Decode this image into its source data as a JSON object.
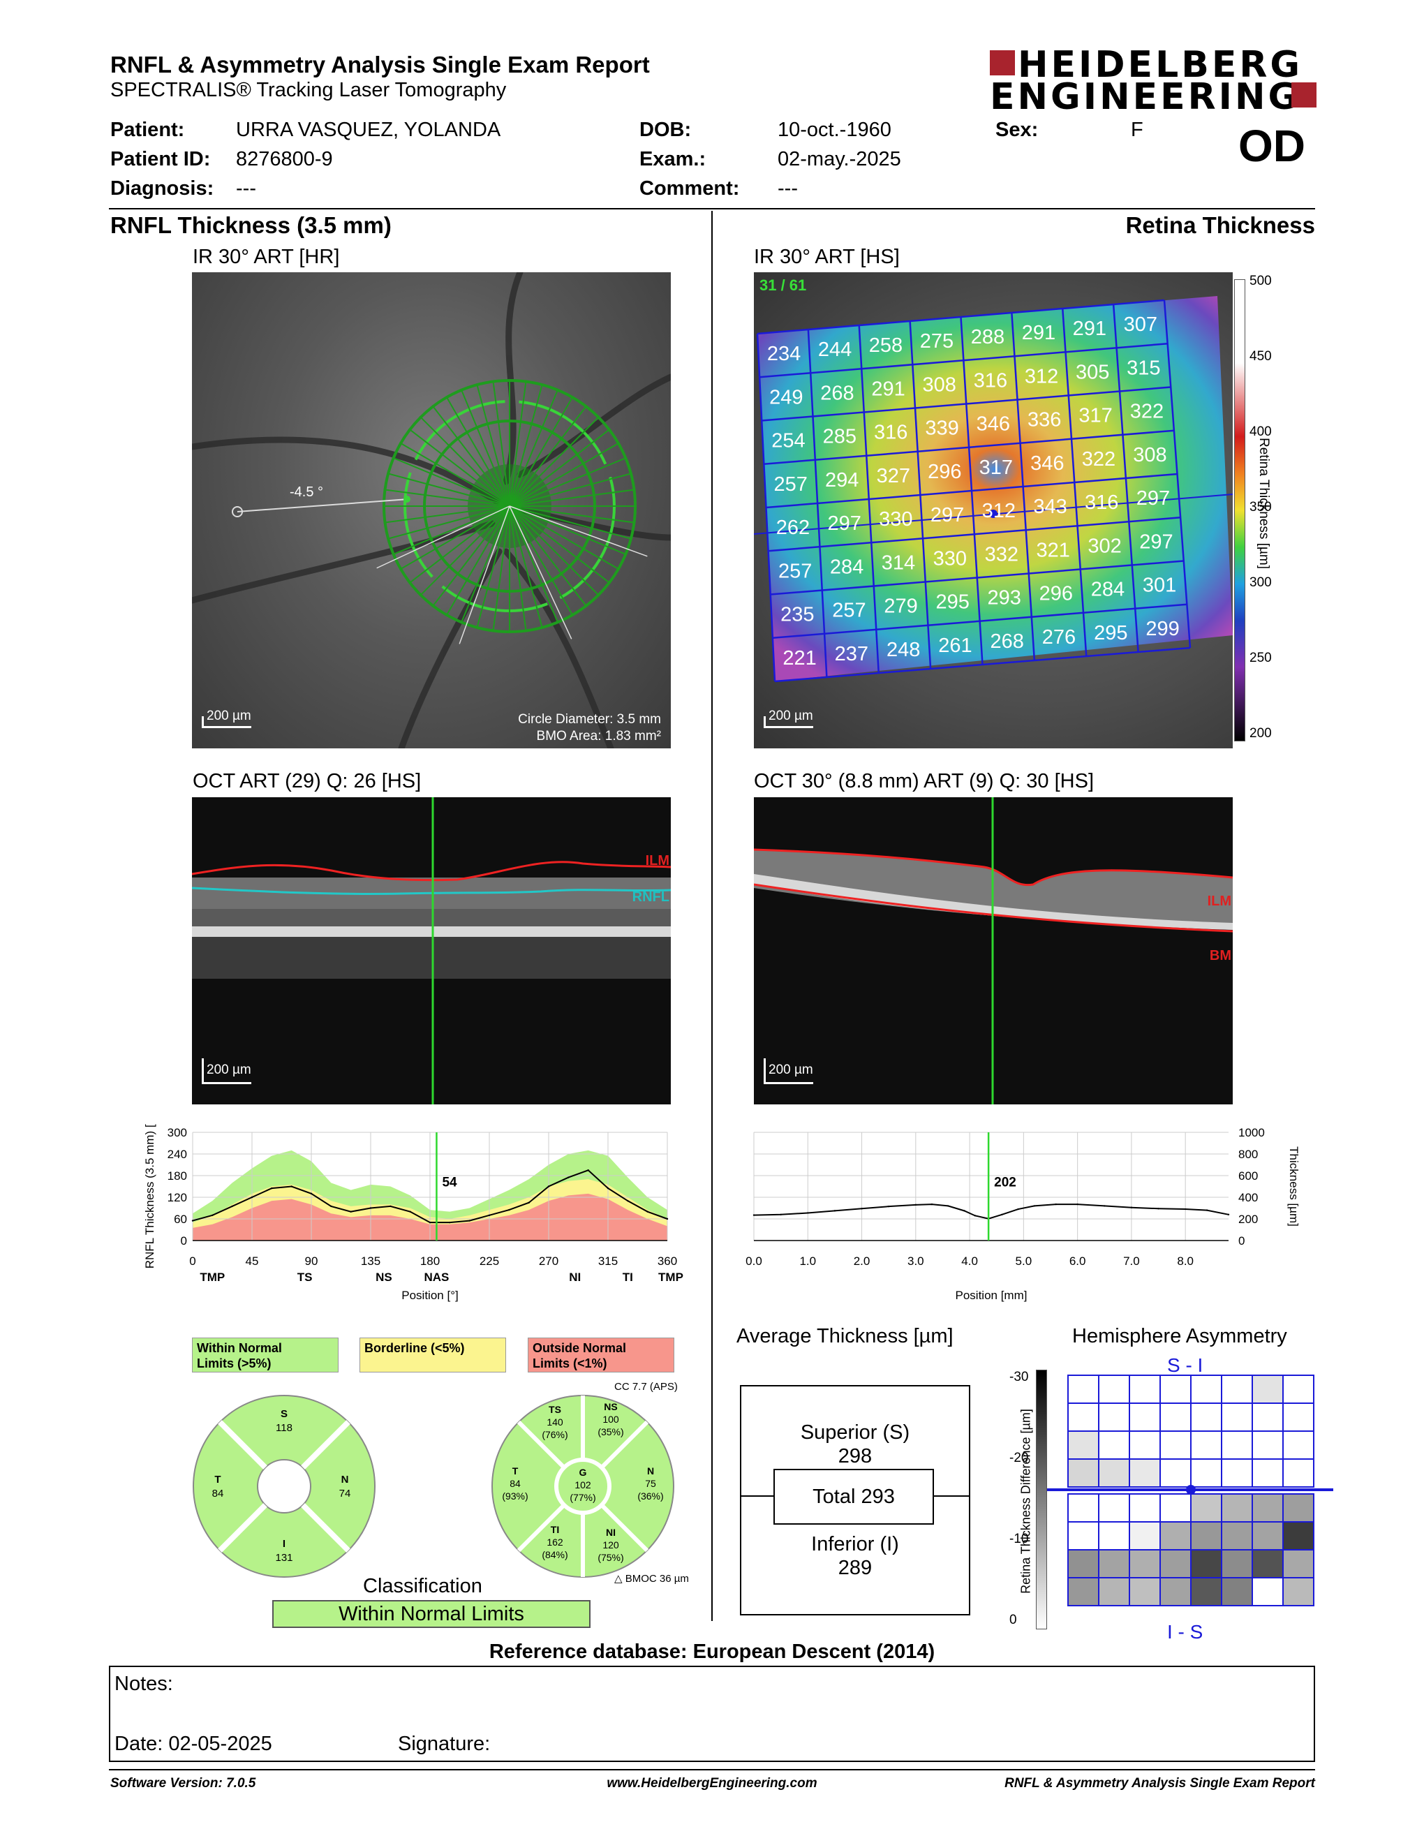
{
  "header": {
    "title": "RNFL & Asymmetry Analysis Single Exam Report",
    "subtitle": "SPECTRALIS® Tracking Laser Tomography",
    "logo_line1": "HEIDELBERG",
    "logo_line2": "ENGINEERING",
    "eye": "OD"
  },
  "patient": {
    "patient_label": "Patient:",
    "patient_value": "URRA VASQUEZ, YOLANDA",
    "id_label": "Patient ID:",
    "id_value": "8276800-9",
    "diag_label": "Diagnosis:",
    "diag_value": "---",
    "dob_label": "DOB:",
    "dob_value": "10-oct.-1960",
    "exam_label": "Exam.:",
    "exam_value": "02-may.-2025",
    "comment_label": "Comment:",
    "comment_value": "---",
    "sex_label": "Sex:",
    "sex_value": "F"
  },
  "left": {
    "section_title": "RNFL Thickness (3.5 mm)",
    "ir_caption": "IR 30° ART [HR]",
    "angle_label": "-4.5 °",
    "scale_label": "200 µm",
    "circle_diam": "Circle Diameter: 3.5 mm",
    "bmo_area": "BMO Area: 1.83 mm²",
    "oct_caption": "OCT ART (29) Q: 26 [HS]",
    "ilm_label": "ILM",
    "rnfl_label": "RNFL",
    "oct_scale": "200 µm",
    "classification_title": "Classification",
    "classification_value": "Within Normal Limits"
  },
  "right": {
    "section_title": "Retina Thickness",
    "ir_caption": "IR 30° ART [HS]",
    "frames": "31 / 61",
    "scale_label": "200 µm",
    "colorbar_title": "Retina Thickness [µm]",
    "colorbar_ticks": [
      "500",
      "450",
      "400",
      "350",
      "300",
      "250",
      "200"
    ],
    "oct_caption": "OCT 30° (8.8 mm) ART (9) Q: 30 [HS]",
    "ilm_label": "ILM",
    "bm_label": "BM",
    "oct_scale": "200 µm"
  },
  "grid_values": [
    [
      234,
      244,
      258,
      275,
      288,
      291,
      291,
      307
    ],
    [
      249,
      268,
      291,
      308,
      316,
      312,
      305,
      315
    ],
    [
      254,
      285,
      316,
      339,
      346,
      336,
      317,
      322
    ],
    [
      257,
      294,
      327,
      296,
      317,
      346,
      322,
      308
    ],
    [
      262,
      297,
      330,
      297,
      312,
      343,
      316,
      297
    ],
    [
      257,
      284,
      314,
      330,
      332,
      321,
      302,
      297
    ],
    [
      235,
      257,
      279,
      295,
      293,
      296,
      284,
      301
    ],
    [
      221,
      237,
      248,
      261,
      268,
      276,
      295,
      299
    ]
  ],
  "legend": {
    "normal": "Within Normal Limits (>5%)",
    "normal_l1": "Within Normal",
    "normal_l2": "Limits (>5%)",
    "borderline": "Borderline (<5%)",
    "outside_l1": "Outside Normal",
    "outside_l2": "Limits (<1%)",
    "cc": "CC 7.7 (APS)",
    "bmoc": "BMOC 36 µm",
    "color_normal": "#b6f28a",
    "color_borderline": "#fbf48f",
    "color_outside": "#f7968c"
  },
  "quad_pie": {
    "S": {
      "label": "S",
      "value": "118"
    },
    "T": {
      "label": "T",
      "value": "84"
    },
    "N": {
      "label": "N",
      "value": "74"
    },
    "I": {
      "label": "I",
      "value": "131"
    }
  },
  "sector_pie": {
    "TS": {
      "label": "TS",
      "value": "140",
      "pct": "(76%)"
    },
    "NS": {
      "label": "NS",
      "value": "100",
      "pct": "(35%)"
    },
    "T": {
      "label": "T",
      "value": "84",
      "pct": "(93%)"
    },
    "G": {
      "label": "G",
      "value": "102",
      "pct": "(77%)"
    },
    "N": {
      "label": "N",
      "value": "75",
      "pct": "(36%)"
    },
    "TI": {
      "label": "TI",
      "value": "162",
      "pct": "(84%)"
    },
    "NI": {
      "label": "NI",
      "value": "120",
      "pct": "(75%)"
    }
  },
  "average": {
    "title": "Average Thickness [µm]",
    "sup_label": "Superior (S)",
    "sup_value": "298",
    "total": "Total 293",
    "inf_label": "Inferior (I)",
    "inf_value": "289"
  },
  "asym": {
    "title": "Hemisphere Asymmetry",
    "top_label": "S - I",
    "bottom_label": "I - S",
    "axis_title": "Retina Thickness Difference [µm]",
    "ticks": [
      "-30",
      "-20",
      "-10",
      "0"
    ],
    "grey_cells": [
      [
        0,
        0,
        0,
        0,
        0,
        0,
        0.12,
        0
      ],
      [
        0,
        0,
        0,
        0,
        0,
        0,
        0,
        0
      ],
      [
        0.12,
        0,
        0,
        0,
        0,
        0,
        0,
        0
      ],
      [
        0.18,
        0.15,
        0.1,
        0,
        0,
        0,
        0,
        0
      ],
      [
        0,
        0,
        0,
        0,
        0.25,
        0.32,
        0.38,
        0.42
      ],
      [
        0,
        0,
        0.06,
        0.35,
        0.45,
        0.42,
        0.4,
        0.85
      ],
      [
        0.48,
        0.4,
        0.35,
        0.42,
        0.8,
        0.5,
        0.75,
        0.38
      ],
      [
        0.45,
        0.32,
        0.28,
        0.4,
        0.72,
        0.55,
        0,
        0.3
      ]
    ]
  },
  "chart_data": [
    {
      "type": "line",
      "title": "",
      "ylabel": "RNFL Thickness (3.5 mm) [µm]",
      "xlabel": "Position [°]",
      "xlim": [
        0,
        360
      ],
      "ylim": [
        0,
        300
      ],
      "xticks": [
        "0",
        "45",
        "90",
        "135",
        "180",
        "225",
        "270",
        "315",
        "360"
      ],
      "yticks": [
        "0",
        "60",
        "120",
        "180",
        "240",
        "300"
      ],
      "sector_labels": [
        "TMP",
        "TS",
        "NS",
        "NAS",
        "NI",
        "TI",
        "TMP"
      ],
      "cursor_x": 185,
      "cursor_label": "54",
      "x": [
        0,
        15,
        30,
        45,
        60,
        75,
        90,
        105,
        120,
        135,
        150,
        165,
        180,
        195,
        210,
        225,
        240,
        255,
        270,
        285,
        300,
        315,
        330,
        345,
        360
      ],
      "series": [
        {
          "values": [
            55,
            70,
            95,
            120,
            145,
            150,
            130,
            95,
            80,
            90,
            95,
            80,
            50,
            50,
            55,
            70,
            85,
            105,
            150,
            175,
            195,
            145,
            110,
            80,
            60
          ]
        }
      ],
      "normal_upper": [
        75,
        110,
        160,
        200,
        235,
        250,
        220,
        160,
        140,
        155,
        150,
        125,
        85,
        80,
        90,
        115,
        140,
        170,
        210,
        240,
        250,
        235,
        175,
        120,
        85
      ],
      "borderline_upper": [
        50,
        70,
        100,
        130,
        150,
        155,
        140,
        110,
        95,
        100,
        100,
        90,
        65,
        60,
        70,
        85,
        100,
        120,
        150,
        165,
        170,
        155,
        120,
        85,
        60
      ],
      "outside_upper": [
        35,
        45,
        65,
        90,
        110,
        115,
        100,
        75,
        65,
        70,
        70,
        60,
        45,
        45,
        50,
        60,
        70,
        85,
        110,
        125,
        130,
        115,
        85,
        60,
        40
      ]
    },
    {
      "type": "line",
      "title": "",
      "ylabel": "Thickness [µm]",
      "xlabel": "Position [mm]",
      "xlim": [
        0,
        8.8
      ],
      "ylim": [
        0,
        1000
      ],
      "xticks": [
        "0.0",
        "1.0",
        "2.0",
        "3.0",
        "4.0",
        "5.0",
        "6.0",
        "7.0",
        "8.0"
      ],
      "yticks": [
        "0",
        "200",
        "400",
        "600",
        "800",
        "1000"
      ],
      "cursor_x": 4.35,
      "cursor_label": "202",
      "x": [
        0,
        0.5,
        1,
        1.5,
        2,
        2.5,
        3,
        3.3,
        3.6,
        3.9,
        4.1,
        4.35,
        4.6,
        4.9,
        5.2,
        5.6,
        6,
        6.5,
        7,
        7.5,
        8,
        8.4,
        8.8
      ],
      "series": [
        {
          "values": [
            235,
            240,
            255,
            275,
            295,
            315,
            330,
            335,
            320,
            275,
            230,
            202,
            240,
            290,
            320,
            335,
            335,
            320,
            305,
            295,
            290,
            280,
            240
          ]
        }
      ]
    }
  ],
  "reference": "Reference database: European Descent (2014)",
  "notes": {
    "notes_label": "Notes:",
    "date_label": "Date: 02-05-2025",
    "signature_label": "Signature:"
  },
  "footer": {
    "version": "Software Version: 7.0.5",
    "url": "www.HeidelbergEngineering.com",
    "report": "RNFL & Asymmetry Analysis Single Exam Report"
  }
}
